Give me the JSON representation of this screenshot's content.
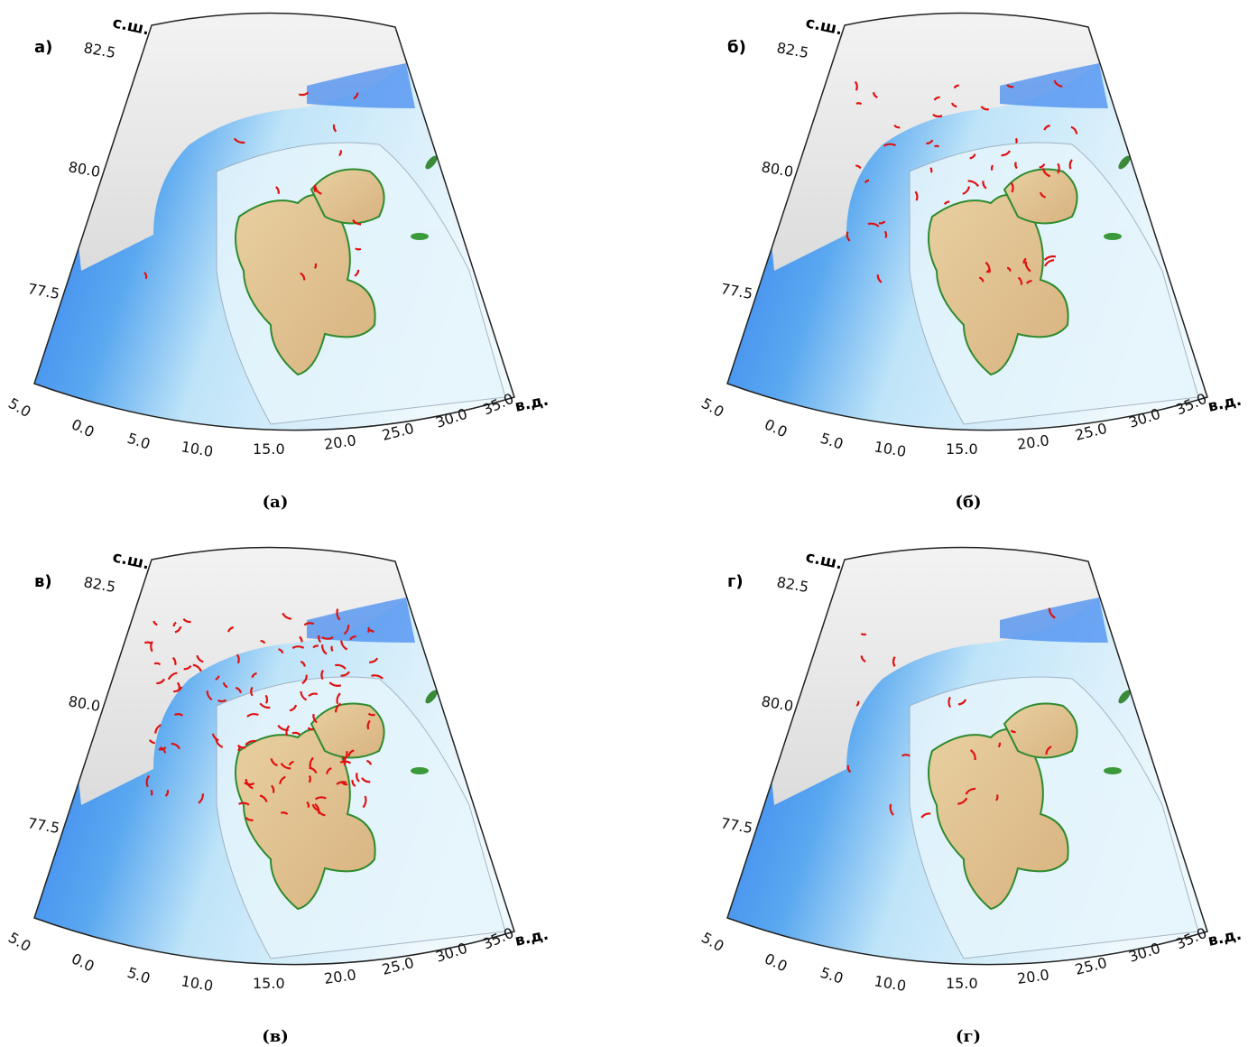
{
  "panels": [
    {
      "label": "а)",
      "caption": "(а)"
    },
    {
      "label": "б)",
      "caption": "(б)"
    },
    {
      "label": "в)",
      "caption": "(в)"
    },
    {
      "label": "г)",
      "caption": "(г)"
    }
  ],
  "grid": {
    "north_label": "с.ш.",
    "east_label": "в.д.",
    "lat_labels": [
      "82.5",
      "80.0",
      "77.5"
    ],
    "lon_labels": [
      "5.0",
      "0.0",
      "5.0",
      "10.0",
      "15.0",
      "20.0",
      "25.0",
      "30.0",
      "35.0"
    ]
  }
}
